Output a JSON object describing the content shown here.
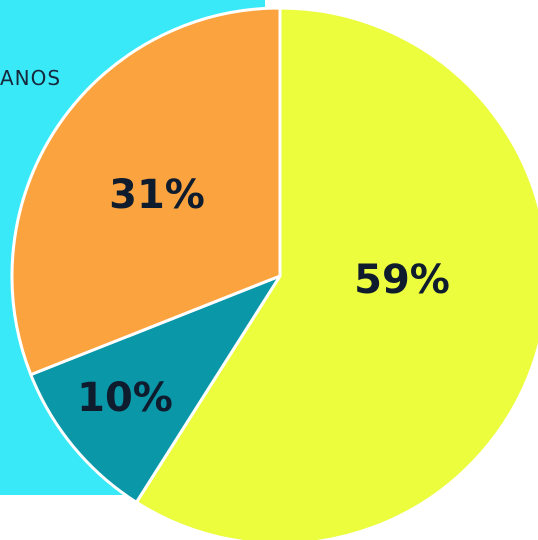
{
  "panel": {
    "label": "ANOS",
    "background": "#3ae9f8"
  },
  "chart_data": {
    "type": "pie",
    "title": "",
    "slices": [
      {
        "label": "59%",
        "value": 59,
        "color": "#ebfd3d"
      },
      {
        "label": "10%",
        "value": 10,
        "color": "#0a97a8"
      },
      {
        "label": "31%",
        "value": 31,
        "color": "#fba43f"
      }
    ],
    "start_angle_deg": 0,
    "direction": "clockwise",
    "slice_border_color": "#ffffff",
    "label_color": "#0f1c2e"
  }
}
